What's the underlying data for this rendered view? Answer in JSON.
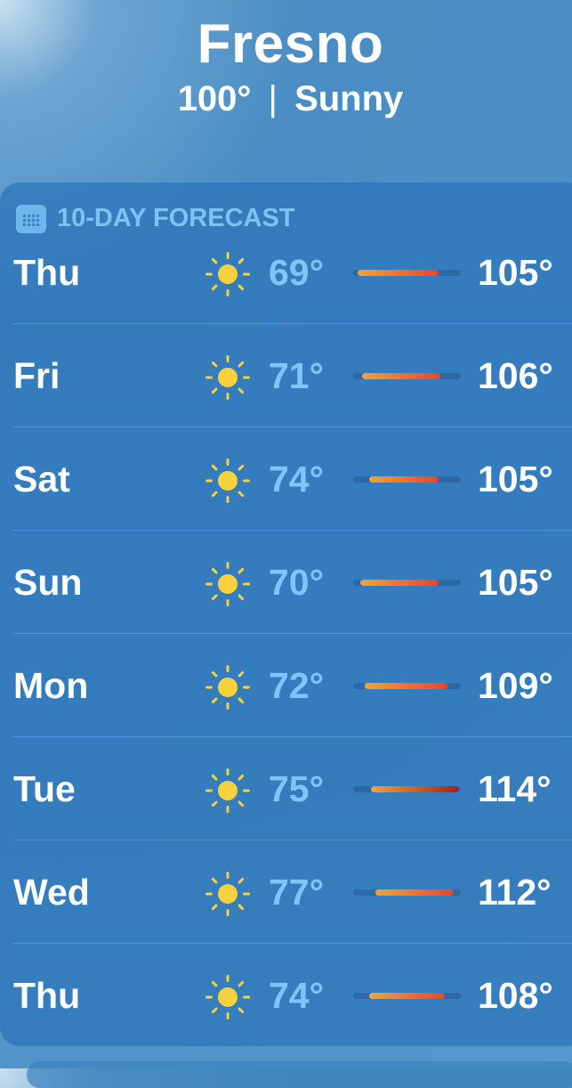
{
  "location": {
    "city": "Fresno",
    "current_temp": "100°",
    "separator": "|",
    "condition": "Sunny"
  },
  "forecast": {
    "title": "10-DAY FORECAST",
    "icon": "calendar-icon",
    "scale": {
      "min": 67,
      "max": 115
    },
    "days": [
      {
        "day": "Thu",
        "icon": "sun-icon",
        "low": "69°",
        "high": "105°",
        "lo": 69,
        "hi": 105
      },
      {
        "day": "Fri",
        "icon": "sun-icon",
        "low": "71°",
        "high": "106°",
        "lo": 71,
        "hi": 106
      },
      {
        "day": "Sat",
        "icon": "sun-icon",
        "low": "74°",
        "high": "105°",
        "lo": 74,
        "hi": 105
      },
      {
        "day": "Sun",
        "icon": "sun-icon",
        "low": "70°",
        "high": "105°",
        "lo": 70,
        "hi": 105
      },
      {
        "day": "Mon",
        "icon": "sun-icon",
        "low": "72°",
        "high": "109°",
        "lo": 72,
        "hi": 109
      },
      {
        "day": "Tue",
        "icon": "sun-icon",
        "low": "75°",
        "high": "114°",
        "lo": 75,
        "hi": 114
      },
      {
        "day": "Wed",
        "icon": "sun-icon",
        "low": "77°",
        "high": "112°",
        "lo": 77,
        "hi": 112
      },
      {
        "day": "Thu",
        "icon": "sun-icon",
        "low": "74°",
        "high": "108°",
        "lo": 74,
        "hi": 108
      }
    ]
  }
}
